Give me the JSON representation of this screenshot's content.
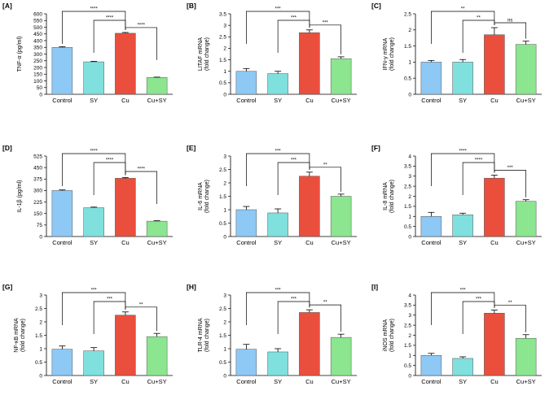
{
  "colors": {
    "Control": "#8ec8f5",
    "SY": "#7fe0de",
    "Cu": "#ea4f3e",
    "Cu+SY": "#8ce58f"
  },
  "chart_data": [
    {
      "panel": "[A]",
      "type": "bar",
      "categories": [
        "Control",
        "SY",
        "Cu",
        "Cu+SY"
      ],
      "values": [
        350,
        242,
        455,
        125
      ],
      "errors": [
        5,
        4,
        6,
        3
      ],
      "ylabel": [
        "TNF-α (pg/ml)"
      ],
      "ylim": [
        0,
        600
      ],
      "yticks": [
        0,
        50,
        100,
        150,
        200,
        250,
        300,
        350,
        400,
        450,
        500,
        550,
        600
      ],
      "comparisons": [
        {
          "from": 0,
          "to": 2,
          "label": "****"
        },
        {
          "from": 1,
          "to": 2,
          "label": "****"
        },
        {
          "from": 2,
          "to": 3,
          "label": "****"
        }
      ]
    },
    {
      "panel": "[B]",
      "type": "bar",
      "categories": [
        "Control",
        "SY",
        "Cu",
        "Cu+SY"
      ],
      "values": [
        1.0,
        0.9,
        2.68,
        1.55
      ],
      "errors": [
        0.12,
        0.1,
        0.12,
        0.08
      ],
      "ylabel": [
        "LITAF mRNA",
        "(fold change)"
      ],
      "ylim": [
        0,
        3.5
      ],
      "yticks": [
        0,
        0.5,
        1,
        1.5,
        2,
        2.5,
        3,
        3.5
      ],
      "comparisons": [
        {
          "from": 0,
          "to": 2,
          "label": "***"
        },
        {
          "from": 1,
          "to": 2,
          "label": "***"
        },
        {
          "from": 2,
          "to": 3,
          "label": "***"
        }
      ]
    },
    {
      "panel": "[C]",
      "type": "bar",
      "categories": [
        "Control",
        "SY",
        "Cu",
        "Cu+SY"
      ],
      "values": [
        1.0,
        1.0,
        1.85,
        1.55
      ],
      "errors": [
        0.05,
        0.08,
        0.22,
        0.1
      ],
      "ylabel": [
        "IFN-γ mRNA",
        "(fold change)"
      ],
      "ylim": [
        0,
        2.5
      ],
      "yticks": [
        0,
        0.5,
        1,
        1.5,
        2,
        2.5
      ],
      "comparisons": [
        {
          "from": 0,
          "to": 2,
          "label": "**"
        },
        {
          "from": 1,
          "to": 2,
          "label": "**"
        },
        {
          "from": 2,
          "to": 3,
          "label": "ns"
        }
      ]
    },
    {
      "panel": "[D]",
      "type": "bar",
      "categories": [
        "Control",
        "SY",
        "Cu",
        "Cu+SY"
      ],
      "values": [
        300,
        188,
        380,
        100
      ],
      "errors": [
        4,
        4,
        5,
        3
      ],
      "ylabel": [
        "IL-1β (pg/ml)"
      ],
      "ylim": [
        0,
        525
      ],
      "yticks": [
        0,
        75,
        150,
        225,
        300,
        375,
        450,
        525
      ],
      "comparisons": [
        {
          "from": 0,
          "to": 2,
          "label": "****"
        },
        {
          "from": 1,
          "to": 2,
          "label": "****"
        },
        {
          "from": 2,
          "to": 3,
          "label": "****"
        }
      ]
    },
    {
      "panel": "[E]",
      "type": "bar",
      "categories": [
        "Control",
        "SY",
        "Cu",
        "Cu+SY"
      ],
      "values": [
        1.0,
        0.88,
        2.25,
        1.5
      ],
      "errors": [
        0.12,
        0.15,
        0.15,
        0.08
      ],
      "ylabel": [
        "IL-6 mRNA",
        "(fold change)"
      ],
      "ylim": [
        0,
        3
      ],
      "yticks": [
        0,
        0.5,
        1,
        1.5,
        2,
        2.5,
        3
      ],
      "comparisons": [
        {
          "from": 0,
          "to": 2,
          "label": "***"
        },
        {
          "from": 1,
          "to": 2,
          "label": "***"
        },
        {
          "from": 2,
          "to": 3,
          "label": "**"
        }
      ]
    },
    {
      "panel": "[F]",
      "type": "bar",
      "categories": [
        "Control",
        "SY",
        "Cu",
        "Cu+SY"
      ],
      "values": [
        1.0,
        1.08,
        2.9,
        1.75
      ],
      "errors": [
        0.2,
        0.08,
        0.15,
        0.08
      ],
      "ylabel": [
        "IL-8 mRNA",
        "(fold change)"
      ],
      "ylim": [
        0,
        4
      ],
      "yticks": [
        0,
        0.5,
        1,
        1.5,
        2,
        2.5,
        3,
        3.5,
        4
      ],
      "comparisons": [
        {
          "from": 0,
          "to": 2,
          "label": "****"
        },
        {
          "from": 1,
          "to": 2,
          "label": "****"
        },
        {
          "from": 2,
          "to": 3,
          "label": "***"
        }
      ]
    },
    {
      "panel": "[G]",
      "type": "bar",
      "categories": [
        "Control",
        "SY",
        "Cu",
        "Cu+SY"
      ],
      "values": [
        0.98,
        0.92,
        2.25,
        1.45
      ],
      "errors": [
        0.12,
        0.12,
        0.12,
        0.12
      ],
      "ylabel": [
        "NF-κB mRNA",
        "(fold change)"
      ],
      "ylim": [
        0,
        3
      ],
      "yticks": [
        0,
        0.5,
        1,
        1.5,
        2,
        2.5,
        3
      ],
      "comparisons": [
        {
          "from": 0,
          "to": 2,
          "label": "***"
        },
        {
          "from": 1,
          "to": 2,
          "label": "***"
        },
        {
          "from": 2,
          "to": 3,
          "label": "**"
        }
      ]
    },
    {
      "panel": "[H]",
      "type": "bar",
      "categories": [
        "Control",
        "SY",
        "Cu",
        "Cu+SY"
      ],
      "values": [
        0.98,
        0.88,
        2.35,
        1.42
      ],
      "errors": [
        0.18,
        0.12,
        0.1,
        0.12
      ],
      "ylabel": [
        "TLR-4 mRNA",
        "(fold change)"
      ],
      "ylim": [
        0,
        3
      ],
      "yticks": [
        0,
        0.5,
        1,
        1.5,
        2,
        2.5,
        3
      ],
      "comparisons": [
        {
          "from": 0,
          "to": 2,
          "label": "***"
        },
        {
          "from": 1,
          "to": 2,
          "label": "***"
        },
        {
          "from": 2,
          "to": 3,
          "label": "**"
        }
      ]
    },
    {
      "panel": "[I]",
      "type": "bar",
      "categories": [
        "Control",
        "SY",
        "Cu",
        "Cu+SY"
      ],
      "values": [
        1.0,
        0.85,
        3.1,
        1.85
      ],
      "errors": [
        0.1,
        0.08,
        0.15,
        0.18
      ],
      "ylabel": [
        "iNOS mRNA",
        "(fold change)"
      ],
      "ylim": [
        0,
        4
      ],
      "yticks": [
        0,
        0.5,
        1,
        1.5,
        2,
        2.5,
        3,
        3.5,
        4
      ],
      "comparisons": [
        {
          "from": 0,
          "to": 2,
          "label": "***"
        },
        {
          "from": 1,
          "to": 2,
          "label": "***"
        },
        {
          "from": 2,
          "to": 3,
          "label": "**"
        }
      ]
    }
  ]
}
